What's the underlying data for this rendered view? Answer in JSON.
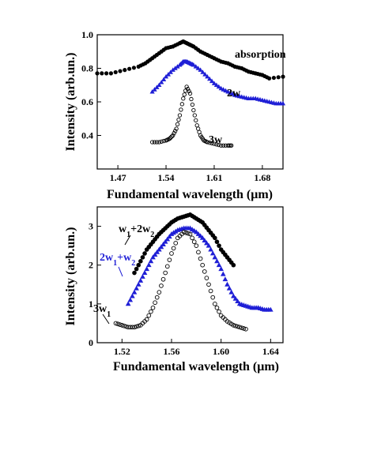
{
  "chart_data": [
    {
      "type": "scatter",
      "xlabel": "Fundamental wavelength (μm)",
      "ylabel": "Intensity (arb.un.)",
      "xlim": [
        1.44,
        1.71
      ],
      "ylim": [
        0.2,
        1.0
      ],
      "xticks": [
        "1.47",
        "1.54",
        "1.61",
        "1.68"
      ],
      "xtick_values": [
        1.47,
        1.54,
        1.61,
        1.68
      ],
      "yticks": [
        "0.4",
        "0.6",
        "0.8",
        "1.0"
      ],
      "ytick_values": [
        0.4,
        0.6,
        0.8,
        1.0
      ],
      "grid": false,
      "series": [
        {
          "name": "absorption",
          "marker": "filled-circle",
          "color": "#000000",
          "x": [
            1.44,
            1.46,
            1.48,
            1.5,
            1.51,
            1.52,
            1.53,
            1.54,
            1.55,
            1.56,
            1.565,
            1.57,
            1.575,
            1.58,
            1.59,
            1.6,
            1.61,
            1.62,
            1.63,
            1.64,
            1.65,
            1.66,
            1.67,
            1.68,
            1.69,
            1.71
          ],
          "y": [
            0.77,
            0.77,
            0.79,
            0.81,
            0.83,
            0.86,
            0.89,
            0.92,
            0.93,
            0.95,
            0.96,
            0.95,
            0.94,
            0.93,
            0.9,
            0.88,
            0.86,
            0.84,
            0.83,
            0.81,
            0.8,
            0.78,
            0.77,
            0.76,
            0.74,
            0.75
          ]
        },
        {
          "name": "2w",
          "marker": "filled-triangle",
          "color": "#1f1fd6",
          "x": [
            1.52,
            1.53,
            1.54,
            1.55,
            1.56,
            1.565,
            1.57,
            1.575,
            1.58,
            1.59,
            1.6,
            1.61,
            1.62,
            1.63,
            1.64,
            1.65,
            1.66,
            1.67,
            1.68,
            1.69,
            1.7,
            1.71
          ],
          "y": [
            0.66,
            0.7,
            0.75,
            0.79,
            0.82,
            0.84,
            0.84,
            0.83,
            0.82,
            0.79,
            0.75,
            0.71,
            0.68,
            0.66,
            0.64,
            0.63,
            0.62,
            0.62,
            0.61,
            0.6,
            0.59,
            0.59
          ]
        },
        {
          "name": "3w",
          "marker": "open-circle",
          "color": "#000000",
          "x": [
            1.52,
            1.53,
            1.54,
            1.545,
            1.55,
            1.555,
            1.56,
            1.565,
            1.57,
            1.575,
            1.58,
            1.585,
            1.59,
            1.595,
            1.6,
            1.61,
            1.62,
            1.63,
            1.635
          ],
          "y": [
            0.36,
            0.36,
            0.37,
            0.38,
            0.4,
            0.44,
            0.52,
            0.62,
            0.69,
            0.65,
            0.55,
            0.46,
            0.4,
            0.37,
            0.36,
            0.35,
            0.34,
            0.34,
            0.34
          ]
        }
      ],
      "annotations": [
        {
          "text": "absorption",
          "x": 1.66,
          "y": 0.945
        },
        {
          "text": "2w",
          "x": 1.62,
          "y": 0.735
        },
        {
          "text": "3w",
          "x": 1.596,
          "y": 0.505
        }
      ]
    },
    {
      "type": "scatter",
      "xlabel": "Fundamental wavelength (μm)",
      "ylabel": "Intensity (arb.un.)",
      "xlim": [
        1.5,
        1.65
      ],
      "ylim": [
        0,
        3.5
      ],
      "xticks": [
        "1.52",
        "1.56",
        "1.60",
        "1.64"
      ],
      "xtick_values": [
        1.52,
        1.56,
        1.6,
        1.64
      ],
      "yticks": [
        "0",
        "1",
        "2",
        "3"
      ],
      "ytick_values": [
        0,
        1,
        2,
        3
      ],
      "grid": false,
      "series": [
        {
          "name": "w1+2w2",
          "marker": "filled-circle",
          "color": "#000000",
          "x": [
            1.53,
            1.535,
            1.54,
            1.545,
            1.55,
            1.555,
            1.56,
            1.565,
            1.57,
            1.575,
            1.58,
            1.585,
            1.59,
            1.595,
            1.6,
            1.605,
            1.61
          ],
          "y": [
            1.8,
            2.1,
            2.4,
            2.6,
            2.8,
            2.95,
            3.1,
            3.2,
            3.25,
            3.3,
            3.2,
            3.1,
            2.9,
            2.7,
            2.4,
            2.2,
            2.0
          ]
        },
        {
          "name": "2w1+w2",
          "marker": "filled-triangle",
          "color": "#1f1fd6",
          "x": [
            1.525,
            1.53,
            1.535,
            1.54,
            1.545,
            1.55,
            1.555,
            1.56,
            1.565,
            1.57,
            1.575,
            1.58,
            1.585,
            1.59,
            1.595,
            1.6,
            1.605,
            1.61,
            1.615,
            1.62,
            1.625,
            1.63,
            1.635,
            1.64
          ],
          "y": [
            1.0,
            1.3,
            1.6,
            1.9,
            2.2,
            2.4,
            2.6,
            2.8,
            2.9,
            2.95,
            2.95,
            2.85,
            2.7,
            2.5,
            2.2,
            1.9,
            1.5,
            1.2,
            1.0,
            0.95,
            0.9,
            0.9,
            0.85,
            0.85
          ]
        },
        {
          "name": "3w1",
          "marker": "open-circle",
          "color": "#000000",
          "x": [
            1.515,
            1.52,
            1.525,
            1.53,
            1.535,
            1.54,
            1.545,
            1.55,
            1.555,
            1.56,
            1.565,
            1.57,
            1.575,
            1.58,
            1.585,
            1.59,
            1.595,
            1.6,
            1.605,
            1.61,
            1.615,
            1.62
          ],
          "y": [
            0.5,
            0.45,
            0.4,
            0.4,
            0.45,
            0.6,
            0.9,
            1.3,
            1.8,
            2.3,
            2.7,
            2.85,
            2.8,
            2.5,
            2.0,
            1.5,
            1.0,
            0.7,
            0.55,
            0.45,
            0.4,
            0.35
          ]
        }
      ],
      "annotations": [
        {
          "text": "w1+2w2",
          "x": 1.527,
          "y": 3.05
        },
        {
          "text": "2w1+w2",
          "x": 1.52,
          "y": 2.28
        },
        {
          "text": "3w1",
          "x": 1.51,
          "y": 0.98
        }
      ]
    }
  ]
}
